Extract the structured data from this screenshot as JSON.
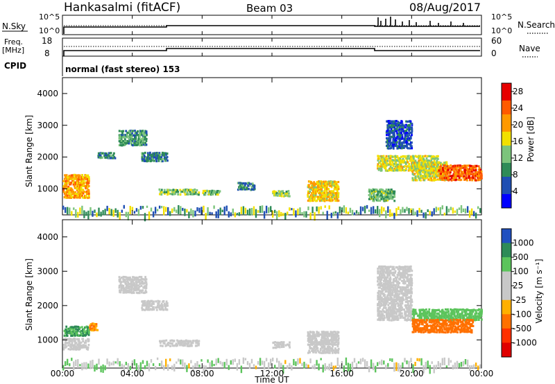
{
  "header": {
    "station": "Hankasalmi (fitACF)",
    "beam": "Beam 03",
    "date": "08/Aug/2017"
  },
  "panels": {
    "sky_label": "N.Sky",
    "search_label": "N.Search",
    "freq_label_top": "Freq.",
    "freq_label_unit": "[MHz]",
    "nave_label": "Nave",
    "cpid_label": "CPID",
    "cpid_text": "normal (fast stereo) 153",
    "sky_ticks": [
      "10^5",
      "10^0"
    ],
    "search_ticks": [
      "10^5",
      "10^0"
    ],
    "freq_ticks": [
      "18",
      "8"
    ],
    "nave_ticks": [
      "60",
      "0"
    ]
  },
  "colors": {
    "power_scale": [
      "#0000ff",
      "#1f4fb3",
      "#2e8b57",
      "#7cc47c",
      "#f2e000",
      "#ff9900",
      "#ff5a00",
      "#e60000"
    ],
    "velocity_scale": [
      "#2050c0",
      "#2e8b57",
      "#5cc45c",
      "#c8c8c8",
      "#c8c8c8",
      "#ffb000",
      "#ff7000",
      "#ff3000",
      "#e00000"
    ]
  },
  "chart_data": [
    {
      "type": "heatmap",
      "title": "Power",
      "xlabel": "",
      "ylabel": "Slant Range [km]",
      "xlim": [
        "00:00",
        "24:00"
      ],
      "ylim": [
        180,
        4500
      ],
      "x_ticks": [
        "00:00",
        "04:00",
        "08:00",
        "12:00",
        "16:00",
        "20:00",
        "00:00"
      ],
      "y_ticks": [
        "1000",
        "2000",
        "3000",
        "4000"
      ],
      "colorbar": {
        "label": "Power [dB]",
        "range": [
          0,
          30
        ],
        "ticks": [
          "4",
          "8",
          "12",
          "16",
          "20",
          "24",
          "28"
        ]
      },
      "echo_regions": [
        {
          "t0": 0.0,
          "t1": 1.5,
          "r0": 750,
          "r1": 1500,
          "power": 20
        },
        {
          "t0": 2.0,
          "t1": 3.0,
          "r0": 2000,
          "r1": 2200,
          "power": 8
        },
        {
          "t0": 3.2,
          "t1": 4.8,
          "r0": 2400,
          "r1": 2900,
          "power": 10
        },
        {
          "t0": 4.5,
          "t1": 6.0,
          "r0": 1900,
          "r1": 2200,
          "power": 8
        },
        {
          "t0": 5.5,
          "t1": 7.8,
          "r0": 850,
          "r1": 1050,
          "power": 14
        },
        {
          "t0": 8.0,
          "t1": 9.0,
          "r0": 850,
          "r1": 1000,
          "power": 12
        },
        {
          "t0": 10.0,
          "t1": 11.0,
          "r0": 1000,
          "r1": 1250,
          "power": 8
        },
        {
          "t0": 12.0,
          "t1": 13.0,
          "r0": 800,
          "r1": 1000,
          "power": 14
        },
        {
          "t0": 14.0,
          "t1": 15.8,
          "r0": 650,
          "r1": 1300,
          "power": 18
        },
        {
          "t0": 17.5,
          "t1": 19.0,
          "r0": 650,
          "r1": 1050,
          "power": 12
        },
        {
          "t0": 18.0,
          "t1": 21.5,
          "r0": 1600,
          "r1": 2100,
          "power": 16
        },
        {
          "t0": 18.5,
          "t1": 20.0,
          "r0": 2300,
          "r1": 3200,
          "power": 6
        },
        {
          "t0": 20.0,
          "t1": 22.0,
          "r0": 1300,
          "r1": 1900,
          "power": 16
        },
        {
          "t0": 21.5,
          "t1": 24.0,
          "r0": 1300,
          "r1": 1800,
          "power": 24
        }
      ]
    },
    {
      "type": "heatmap",
      "title": "Velocity",
      "xlabel": "Time UT",
      "ylabel": "Slant Range [km]",
      "xlim": [
        "00:00",
        "24:00"
      ],
      "ylim": [
        180,
        4500
      ],
      "x_ticks": [
        "00:00",
        "04:00",
        "08:00",
        "12:00",
        "16:00",
        "20:00",
        "00:00"
      ],
      "y_ticks": [
        "1000",
        "2000",
        "3000",
        "4000"
      ],
      "colorbar": {
        "label": "Velocity [m s⁻¹]",
        "range": [
          -1200,
          1200
        ],
        "ticks": [
          "1000",
          "500",
          "100",
          "25",
          "-25",
          "-100",
          "-500",
          "-1000"
        ]
      },
      "echo_regions": [
        {
          "t0": 0.0,
          "t1": 1.5,
          "r0": 750,
          "r1": 1100,
          "velocity": 0
        },
        {
          "t0": 0.0,
          "t1": 1.5,
          "r0": 1150,
          "r1": 1450,
          "velocity": 300
        },
        {
          "t0": 1.5,
          "t1": 2.0,
          "r0": 1300,
          "r1": 1550,
          "velocity": -150
        },
        {
          "t0": 3.2,
          "t1": 4.8,
          "r0": 2400,
          "r1": 2900,
          "velocity": 0
        },
        {
          "t0": 4.5,
          "t1": 6.0,
          "r0": 1900,
          "r1": 2200,
          "velocity": 0
        },
        {
          "t0": 5.5,
          "t1": 7.8,
          "r0": 850,
          "r1": 1050,
          "velocity": 0
        },
        {
          "t0": 12.0,
          "t1": 13.0,
          "r0": 800,
          "r1": 1000,
          "velocity": 0
        },
        {
          "t0": 14.0,
          "t1": 15.8,
          "r0": 650,
          "r1": 1300,
          "velocity": 0
        },
        {
          "t0": 18.0,
          "t1": 20.0,
          "r0": 1600,
          "r1": 3200,
          "velocity": 0
        },
        {
          "t0": 20.0,
          "t1": 24.0,
          "r0": 1600,
          "r1": 1950,
          "velocity": 150
        },
        {
          "t0": 20.0,
          "t1": 23.5,
          "r0": 1250,
          "r1": 1650,
          "velocity": -400
        }
      ]
    }
  ]
}
